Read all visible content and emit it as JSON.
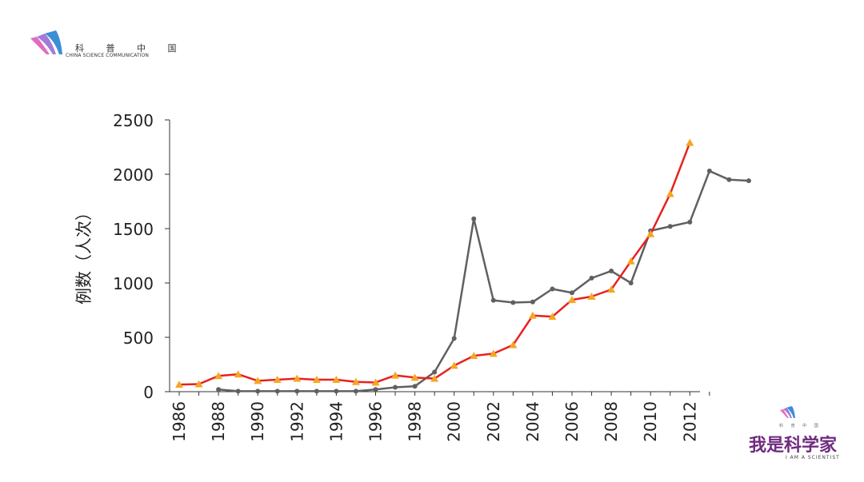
{
  "branding": {
    "top_cn": "科 普 中 国",
    "top_en": "CHINA SCIENCE COMMUNICATION",
    "bottom_small_cn": "科 普 中 国",
    "bottom_cn": "我是科学家",
    "bottom_en": "I AM A SCIENTIST",
    "accent_purple": "#6f2b7f",
    "accent_pink": "#e26ac0",
    "accent_blue": "#3a8fd6"
  },
  "chart_data": {
    "type": "line",
    "title": "",
    "xlabel": "",
    "ylabel": "例数（人次）",
    "xlim": [
      1986,
      2013
    ],
    "ylim": [
      0,
      2500
    ],
    "y_ticks": [
      0,
      500,
      1000,
      1500,
      2000,
      2500
    ],
    "x_ticks": [
      1986,
      1988,
      1990,
      1992,
      1994,
      1996,
      1998,
      2000,
      2002,
      2004,
      2006,
      2008,
      2010,
      2012
    ],
    "grid": false,
    "legend": "none",
    "series": [
      {
        "color": "#e8211f",
        "marker": "triangle",
        "marker_color": "#f5a623",
        "x": [
          1986,
          1987,
          1988,
          1989,
          1990,
          1991,
          1992,
          1993,
          1994,
          1995,
          1996,
          1997,
          1998,
          1999,
          2000,
          2001,
          2002,
          2003,
          2004,
          2005,
          2006,
          2007,
          2008,
          2009,
          2010,
          2011,
          2012
        ],
        "values": [
          65,
          70,
          145,
          160,
          100,
          110,
          120,
          110,
          110,
          90,
          85,
          150,
          130,
          120,
          240,
          330,
          350,
          430,
          700,
          690,
          845,
          875,
          940,
          1200,
          1450,
          1820,
          2290
        ]
      },
      {
        "color": "#606060",
        "marker": "circle",
        "marker_color": "#606060",
        "x": [
          1988,
          1989,
          1990,
          1991,
          1992,
          1993,
          1994,
          1995,
          1996,
          1997,
          1998,
          1999,
          2000,
          2001,
          2002,
          2003,
          2004,
          2005,
          2006,
          2007,
          2008,
          2009,
          2010,
          2011,
          2012,
          2013,
          2014,
          2015
        ],
        "values": [
          20,
          5,
          5,
          5,
          5,
          5,
          5,
          5,
          20,
          40,
          50,
          180,
          490,
          1590,
          840,
          820,
          825,
          945,
          910,
          1045,
          1110,
          1000,
          1480,
          1520,
          1560,
          2030,
          1950,
          1940
        ]
      }
    ]
  }
}
